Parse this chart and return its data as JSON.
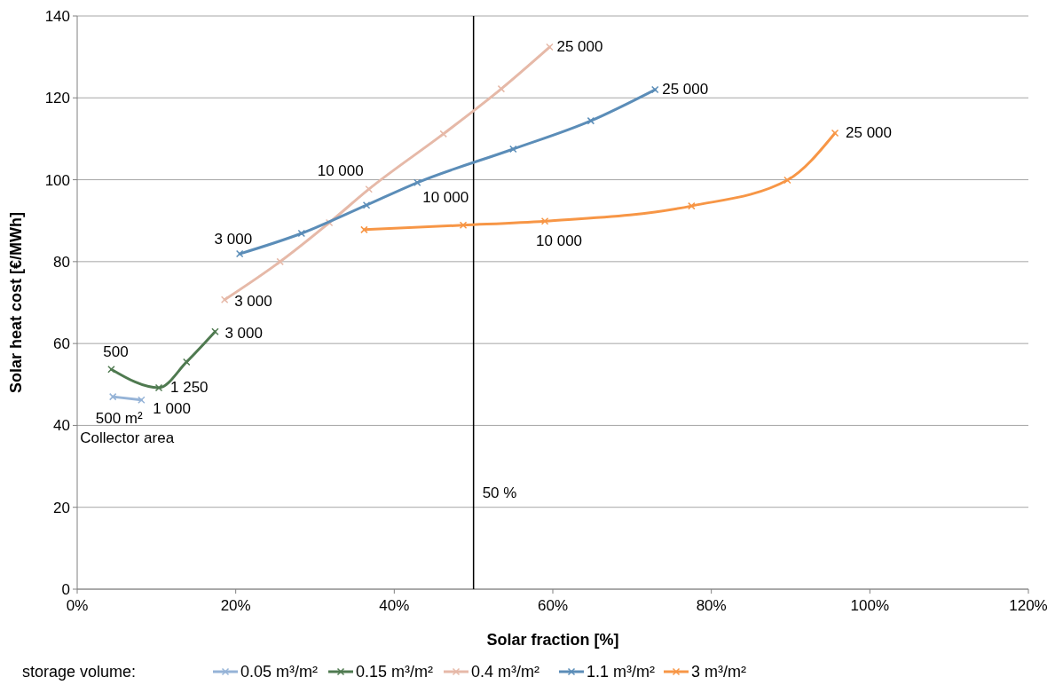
{
  "chart_data": {
    "type": "line",
    "xlabel": "Solar fraction [%]",
    "ylabel": "Solar heat cost [€/MWh]",
    "legend_title": "storage volume:",
    "legend": "bottom",
    "grid": "y",
    "marker": "cross",
    "line_style": "solid",
    "xlim": [
      0,
      120
    ],
    "ylim": [
      0,
      140
    ],
    "xticks": [
      {
        "value": 0,
        "label": "0%"
      },
      {
        "value": 20,
        "label": "20%"
      },
      {
        "value": 40,
        "label": "40%"
      },
      {
        "value": 60,
        "label": "60%"
      },
      {
        "value": 80,
        "label": "80%"
      },
      {
        "value": 100,
        "label": "100%"
      },
      {
        "value": 120,
        "label": "120%"
      }
    ],
    "yticks": [
      0,
      20,
      40,
      60,
      80,
      100,
      120,
      140
    ],
    "series": [
      {
        "name": "0.05 m³/m²",
        "color": "#95b3d7",
        "x": [
          4.5,
          8.1
        ],
        "values": [
          47.0,
          46.2
        ]
      },
      {
        "name": "0.15 m³/m²",
        "color": "#4f7a50",
        "x": [
          4.3,
          10.3,
          13.8,
          17.4
        ],
        "values": [
          53.7,
          49.2,
          55.5,
          62.9
        ]
      },
      {
        "name": "0.4 m³/m²",
        "color": "#e6b9a8",
        "x": [
          18.6,
          25.6,
          31.8,
          36.8,
          46.2,
          53.5,
          59.6
        ],
        "values": [
          70.7,
          80.0,
          89.5,
          97.7,
          111.2,
          122.2,
          132.4
        ]
      },
      {
        "name": "1.1 m³/m²",
        "color": "#5b8db8",
        "x": [
          20.5,
          28.3,
          36.5,
          42.9,
          55.0,
          64.8,
          72.9
        ],
        "values": [
          81.9,
          86.9,
          93.8,
          99.3,
          107.5,
          114.4,
          122.0
        ]
      },
      {
        "name": "3 m³/m²",
        "color": "#f79646",
        "x": [
          36.2,
          48.7,
          59.0,
          77.5,
          89.6,
          95.6
        ],
        "values": [
          87.8,
          88.9,
          89.9,
          93.6,
          99.9,
          111.4
        ]
      }
    ],
    "ref_lines": [
      {
        "axis": "x",
        "value": 50,
        "label": "50 %",
        "color": "#000000"
      }
    ],
    "annotations": [
      {
        "text": "25 000",
        "x": 59.6,
        "y": 132.4
      },
      {
        "text": "25 000",
        "x": 72.9,
        "y": 122.0
      },
      {
        "text": "25 000",
        "x": 95.6,
        "y": 111.4
      },
      {
        "text": "10 000",
        "x": 36.8,
        "y": 97.7
      },
      {
        "text": "10 000",
        "x": 42.9,
        "y": 99.3
      },
      {
        "text": "10 000",
        "x": 59.0,
        "y": 89.9
      },
      {
        "text": "3 000",
        "x": 18.6,
        "y": 70.7
      },
      {
        "text": "3 000",
        "x": 20.5,
        "y": 81.9
      },
      {
        "text": "3 000",
        "x": 17.4,
        "y": 62.9
      },
      {
        "text": "500",
        "x": 4.3,
        "y": 53.7
      },
      {
        "text": "1 250",
        "x": 10.3,
        "y": 49.2
      },
      {
        "text": "500 m²",
        "x": 4.5,
        "y": 47.0
      },
      {
        "text": "1 000",
        "x": 8.1,
        "y": 46.2
      },
      {
        "text": "Collector area",
        "x": 4.5,
        "y": 47.0
      }
    ]
  }
}
